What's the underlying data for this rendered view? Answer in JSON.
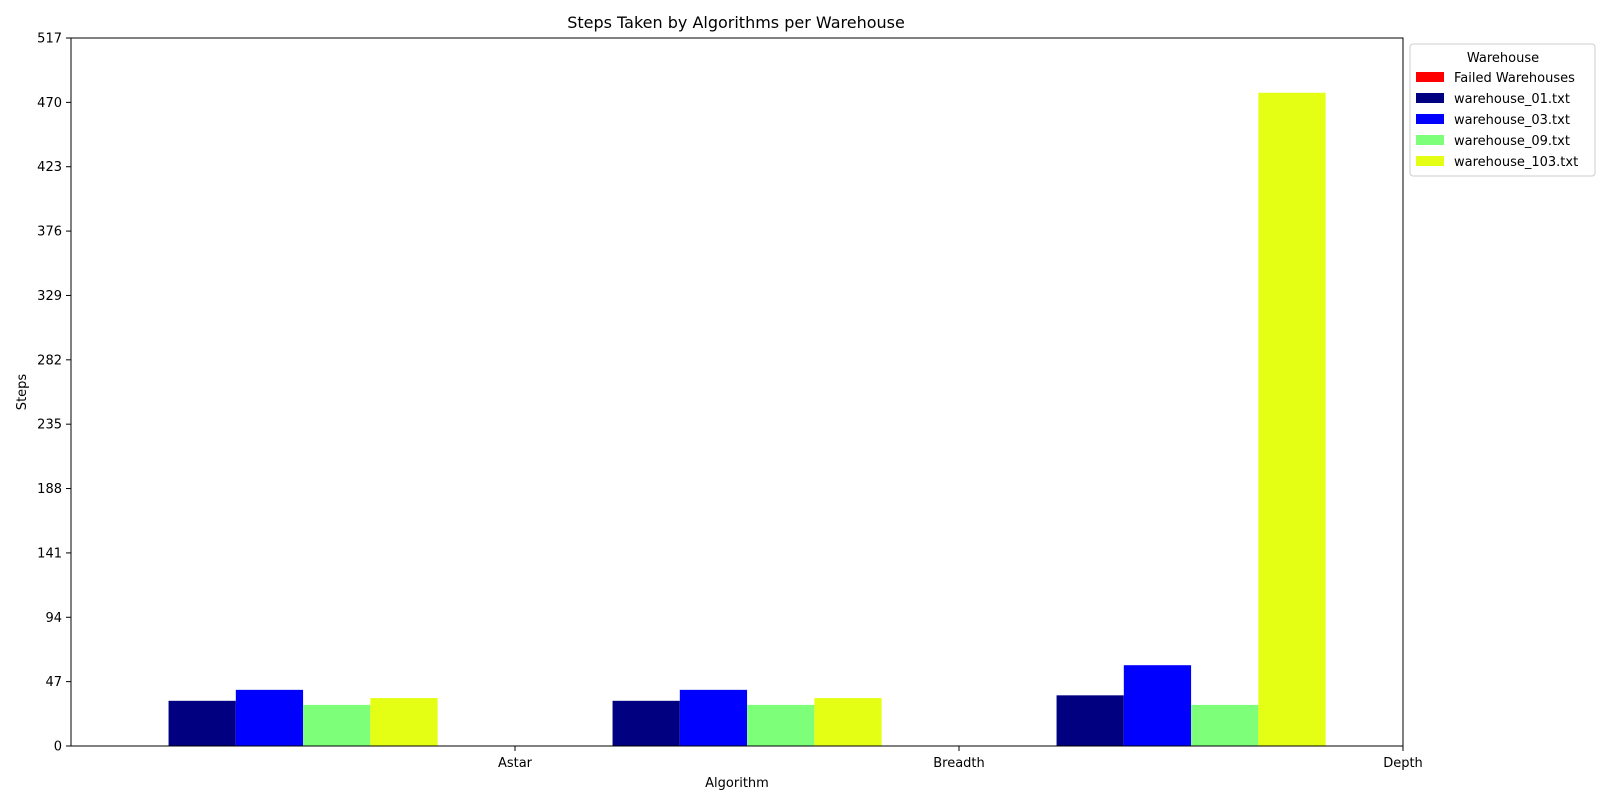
{
  "chart_data": {
    "type": "bar",
    "title": "Steps Taken by Algorithms per Warehouse",
    "xlabel": "Algorithm",
    "ylabel": "Steps",
    "categories": [
      "Astar",
      "Breadth",
      "Depth"
    ],
    "yticks": [
      0,
      47,
      94,
      141,
      188,
      235,
      282,
      329,
      376,
      423,
      470,
      517
    ],
    "ylim": [
      0,
      517
    ],
    "grid": false,
    "legend": {
      "title": "Warehouse",
      "placement": "top-right outside"
    },
    "series": [
      {
        "name": "Failed Warehouses",
        "color": "#ff0000",
        "values": [
          0,
          0,
          0
        ]
      },
      {
        "name": "warehouse_01.txt",
        "color": "#000080",
        "values": [
          33,
          33,
          37
        ]
      },
      {
        "name": "warehouse_03.txt",
        "color": "#0000ff",
        "values": [
          41,
          41,
          59
        ]
      },
      {
        "name": "warehouse_09.txt",
        "color": "#7dff7a",
        "values": [
          30,
          30,
          30
        ]
      },
      {
        "name": "warehouse_103.txt",
        "color": "#e4ff13",
        "values": [
          35,
          35,
          477
        ]
      }
    ]
  }
}
